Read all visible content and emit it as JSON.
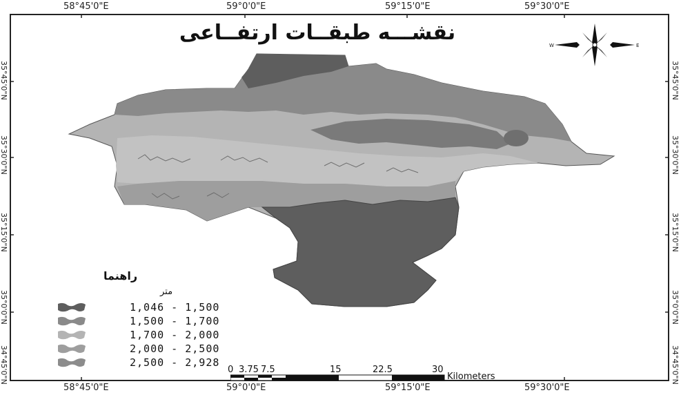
{
  "map": {
    "title": "نقشـــه طبقــات ارتفــاعی",
    "longitudes_top": [
      "58°45'0\"E",
      "59°0'0\"E",
      "59°15'0\"E",
      "59°30'0\"E"
    ],
    "longitudes_bottom": [
      "58°45'0\"E",
      "59°0'0\"E",
      "59°15'0\"E",
      "59°30'0\"E"
    ],
    "latitudes": [
      "35°45'0\"N",
      "35°30'0\"N",
      "35°15'0\"N",
      "35°0'0\"N",
      "34°45'0\"N"
    ],
    "legend": {
      "title": "راهنما",
      "unit": "متر",
      "classes": [
        {
          "label": "1,046 - 1,500",
          "color": "#5e5e5e"
        },
        {
          "label": "1,500 - 1,700",
          "color": "#8a8a8a"
        },
        {
          "label": "1,700 - 2,000",
          "color": "#b4b4b4"
        },
        {
          "label": "2,000 - 2,500",
          "color": "#9e9e9e"
        },
        {
          "label": "2,500 - 2,928",
          "color": "#8c8c8c"
        }
      ]
    },
    "scale_bar": {
      "ticks": [
        "0",
        "3.75",
        "7.5",
        "15",
        "22.5",
        "30"
      ],
      "unit": "Kilometers"
    },
    "north_arrow": {
      "icon": "compass-rose-icon",
      "labels": [
        "W",
        "E"
      ]
    }
  }
}
